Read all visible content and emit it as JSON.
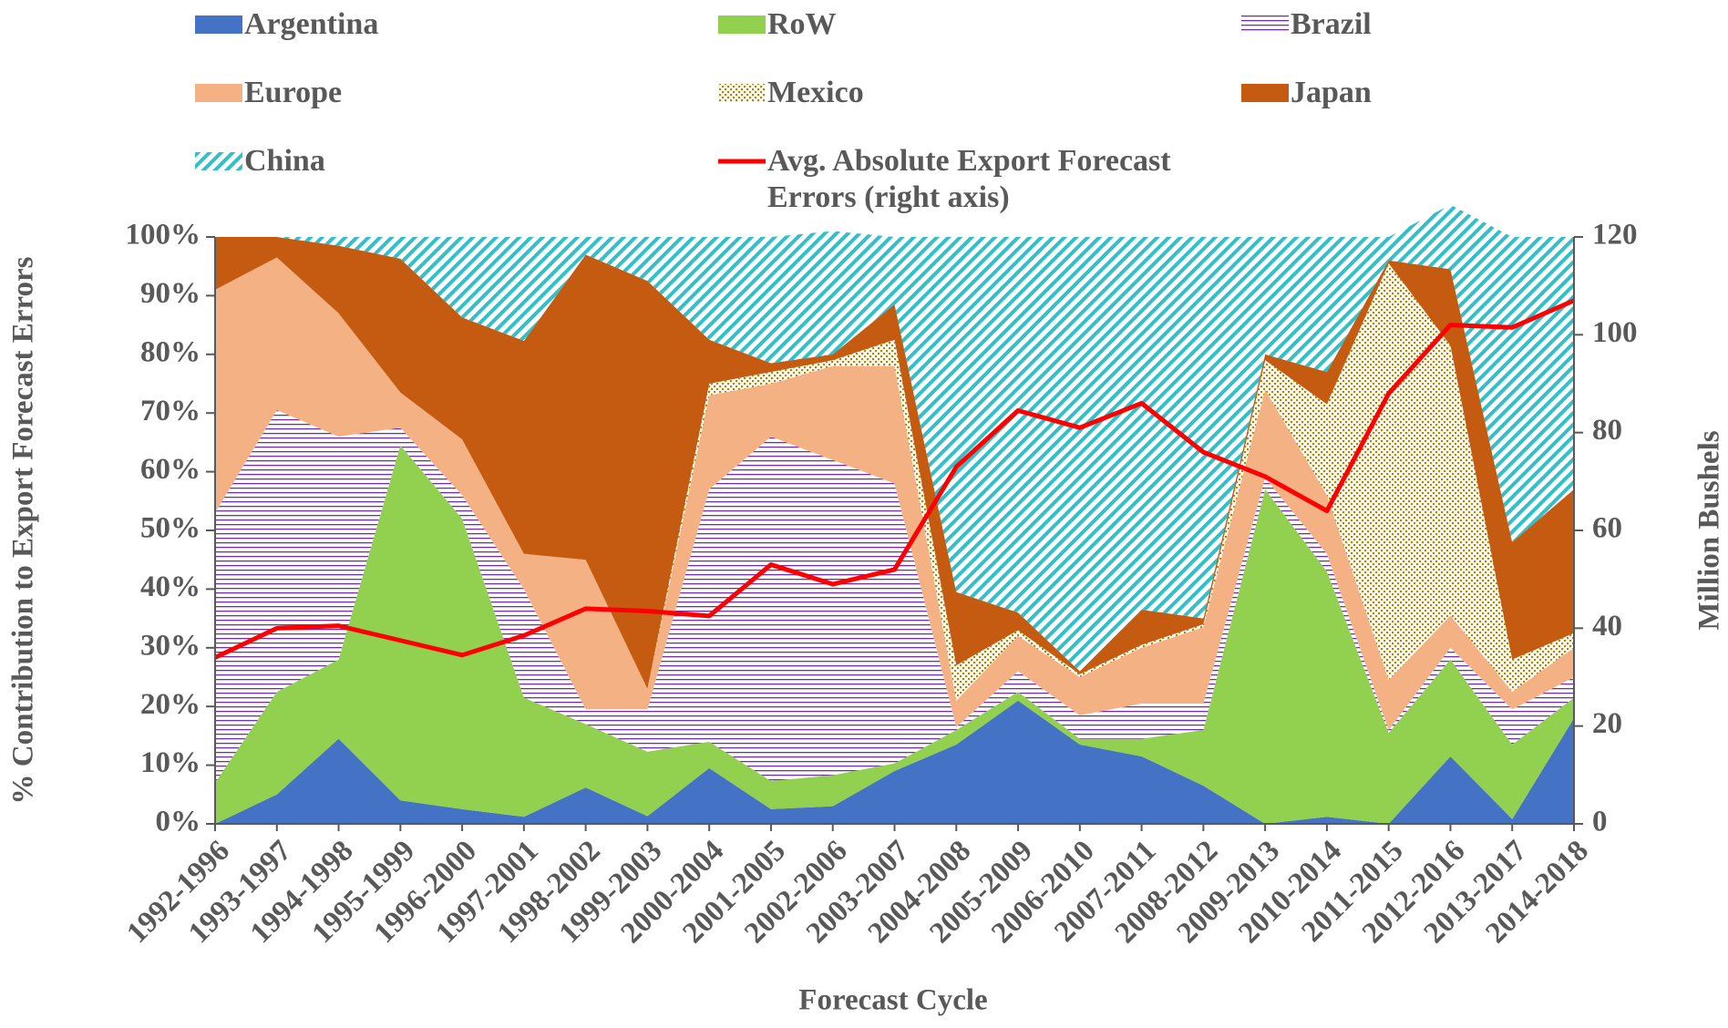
{
  "chart_data": {
    "type": "area",
    "stacked": true,
    "x_label": "Forecast Cycle",
    "y_label": "% Contribution to Export Forecast Errors",
    "y2_label": "Million Bushels",
    "categories": [
      "1992-1996",
      "1993-1997",
      "1994-1998",
      "1995-1999",
      "1996-2000",
      "1997-2001",
      "1998-2002",
      "1999-2003",
      "2000-2004",
      "2001-2005",
      "2002-2006",
      "2003-2007",
      "2004-2008",
      "2005-2009",
      "2006-2010",
      "2007-2011",
      "2008-2012",
      "2009-2013",
      "2010-2014",
      "2011-2015",
      "2012-2016",
      "2013-2017",
      "2014-2018"
    ],
    "ylim": [
      0,
      100
    ],
    "yticks": [
      {
        "value": 0,
        "label": "0%"
      },
      {
        "value": 10,
        "label": "10%"
      },
      {
        "value": 20,
        "label": "20%"
      },
      {
        "value": 30,
        "label": "30%"
      },
      {
        "value": 40,
        "label": "40%"
      },
      {
        "value": 50,
        "label": "50%"
      },
      {
        "value": 60,
        "label": "60%"
      },
      {
        "value": 70,
        "label": "70%"
      },
      {
        "value": 80,
        "label": "80%"
      },
      {
        "value": 90,
        "label": "90%"
      },
      {
        "value": 100,
        "label": "100%"
      }
    ],
    "y2lim": [
      0,
      120
    ],
    "y2ticks": [
      0,
      20,
      40,
      60,
      80,
      100,
      120
    ],
    "series": [
      {
        "name": "Argentina",
        "color": "#4472c4",
        "values": [
          0,
          5,
          14.5,
          4,
          2.5,
          1.2,
          6.2,
          1.3,
          9.5,
          2.5,
          3,
          9,
          13.5,
          21,
          13.5,
          11.5,
          6.5,
          0,
          1.2,
          0,
          11.5,
          0.8,
          18
        ]
      },
      {
        "name": "RoW",
        "color": "#92d050",
        "values": [
          7,
          17.5,
          13.5,
          60.5,
          49.5,
          20.3,
          10.8,
          11,
          4.5,
          4.8,
          5.3,
          1.3,
          2.5,
          1.5,
          1,
          3,
          9.5,
          57,
          41.8,
          15.5,
          16.5,
          12.7,
          3.5
        ]
      },
      {
        "name": "Brazil",
        "color": "#7030a0",
        "pattern": "horizontal-lines",
        "values": [
          46,
          48,
          38,
          3,
          4,
          18.5,
          2.5,
          7.2,
          43,
          58.7,
          53.7,
          47.7,
          0.5,
          3.5,
          4,
          6,
          4.5,
          2,
          3,
          0.5,
          2,
          6,
          3.5
        ]
      },
      {
        "name": "Europe",
        "color": "#f4b183",
        "values": [
          38,
          26,
          21,
          6,
          9.5,
          6,
          25.5,
          3.5,
          16,
          9,
          16,
          20,
          4.5,
          6,
          6.5,
          9.5,
          13,
          15,
          10,
          8.5,
          5.5,
          3,
          5
        ]
      },
      {
        "name": "Mexico",
        "color": "#b38600",
        "pattern": "dots",
        "values": [
          0,
          0,
          0,
          0,
          0,
          0,
          0,
          0,
          2,
          2,
          1,
          4.5,
          6,
          1,
          0.5,
          0.5,
          0.5,
          5,
          15.5,
          71,
          46,
          5.5,
          2.5
        ]
      },
      {
        "name": "Japan",
        "color": "#c55a11",
        "values": [
          9,
          3.5,
          11.5,
          22.8,
          20.8,
          36.3,
          52,
          69.5,
          7.5,
          1.5,
          1,
          6,
          12.5,
          3,
          0.5,
          6,
          1,
          1,
          5.5,
          0.5,
          13,
          20,
          24.5
        ]
      },
      {
        "name": "China",
        "color": "#33bfc8",
        "pattern": "diagonal",
        "values": [
          0,
          0,
          1.5,
          3.7,
          13.7,
          17.7,
          3,
          7.5,
          17.5,
          21.5,
          21,
          11.5,
          60.5,
          64,
          74,
          63.5,
          65,
          20,
          23,
          4,
          11,
          52,
          43
        ]
      },
      {
        "name": "Avg. Absolute Export Forecast Errors (right axis)",
        "color": "#ff0000",
        "type": "line",
        "axis": "y2",
        "values": [
          34,
          40,
          40.5,
          37.5,
          34.5,
          38.5,
          44,
          43.5,
          42.5,
          53,
          49,
          52,
          73,
          84.5,
          81,
          86,
          76,
          71,
          64,
          88,
          102,
          101.5,
          107
        ]
      }
    ]
  }
}
